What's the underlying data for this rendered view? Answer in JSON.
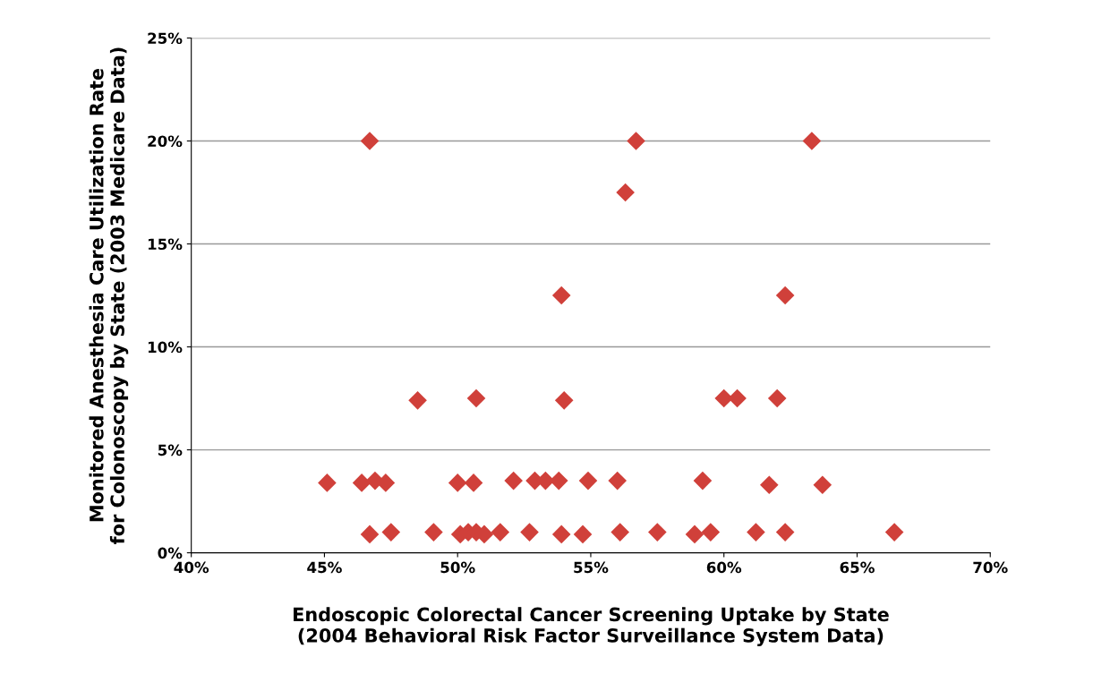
{
  "chart_data": {
    "type": "scatter",
    "xlabel": "Endoscopic Colorectal Cancer Screening Uptake by State\n(2004 Behavioral Risk Factor Surveillance System Data)",
    "ylabel": "Monitored Anesthesia Care Utilization Rate\nfor Colonoscopy by State (2003 Medicare Data)",
    "x": [
      45.1,
      46.7,
      46.4,
      46.9,
      47.3,
      46.7,
      47.5,
      48.5,
      49.1,
      50.0,
      50.1,
      50.4,
      50.6,
      50.7,
      50.7,
      51.0,
      51.6,
      52.1,
      52.7,
      52.9,
      53.3,
      53.8,
      53.9,
      53.9,
      54.0,
      54.7,
      54.9,
      56.0,
      56.1,
      56.3,
      56.7,
      57.5,
      58.9,
      59.2,
      59.5,
      60.0,
      60.5,
      61.2,
      61.7,
      62.0,
      62.3,
      62.3,
      63.3,
      63.7,
      66.4
    ],
    "series": [
      {
        "color": "#d0403a",
        "values": [
          3.4,
          20.0,
          3.4,
          3.5,
          3.4,
          0.9,
          1.0,
          7.4,
          1.0,
          3.4,
          0.9,
          1.0,
          3.4,
          7.5,
          1.0,
          0.9,
          1.0,
          3.5,
          1.0,
          3.5,
          3.5,
          3.5,
          12.5,
          0.9,
          7.4,
          0.9,
          3.5,
          3.5,
          1.0,
          17.5,
          20.0,
          1.0,
          0.9,
          3.5,
          1.0,
          7.5,
          7.5,
          1.0,
          3.3,
          7.5,
          12.5,
          1.0,
          20.0,
          3.3,
          1.0
        ]
      }
    ],
    "xlim": [
      40,
      70
    ],
    "xticks": [
      {
        "value": 40,
        "label": "40%"
      },
      {
        "value": 45,
        "label": "45%"
      },
      {
        "value": 50,
        "label": "50%"
      },
      {
        "value": 55,
        "label": "55%"
      },
      {
        "value": 60,
        "label": "60%"
      },
      {
        "value": 65,
        "label": "65%"
      },
      {
        "value": 70,
        "label": "70%"
      }
    ],
    "ylim": [
      0,
      25
    ],
    "yticks": [
      {
        "value": 0,
        "label": "0%"
      },
      {
        "value": 5,
        "label": "5%"
      },
      {
        "value": 10,
        "label": "10%"
      },
      {
        "value": 15,
        "label": "15%"
      },
      {
        "value": 20,
        "label": "20%"
      },
      {
        "value": 25,
        "label": "25%"
      }
    ],
    "grid": "y",
    "marker": "diamond",
    "legend": false
  }
}
